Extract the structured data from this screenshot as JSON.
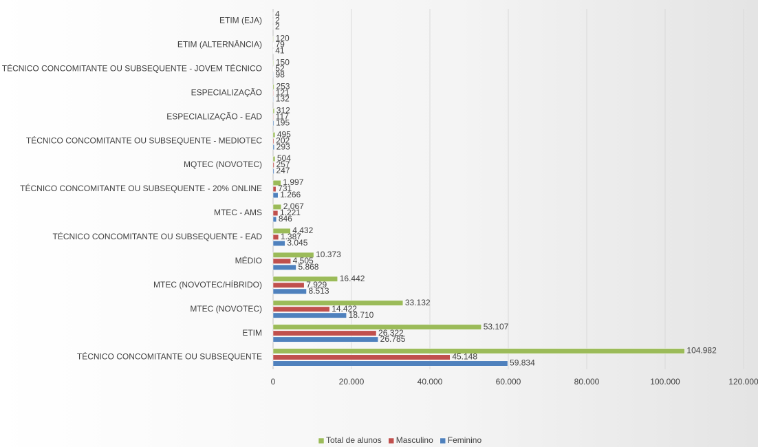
{
  "chart_data": {
    "type": "bar",
    "orientation": "horizontal",
    "categories": [
      "ETIM (EJA)",
      "ETIM (ALTERNÂNCIA)",
      "TÉCNICO CONCOMITANTE OU SUBSEQUENTE - JOVEM TÉCNICO",
      "ESPECIALIZAÇÃO",
      "ESPECIALIZAÇÃO - EAD",
      "TÉCNICO CONCOMITANTE OU SUBSEQUENTE - MEDIOTEC",
      "MQTEC (NOVOTEC)",
      "TÉCNICO CONCOMITANTE OU SUBSEQUENTE - 20% ONLINE",
      "MTEC - AMS",
      "TÉCNICO CONCOMITANTE OU SUBSEQUENTE - EAD",
      "MÉDIO",
      "MTEC (NOVOTEC/HÍBRIDO)",
      "MTEC (NOVOTEC)",
      "ETIM",
      "TÉCNICO CONCOMITANTE OU SUBSEQUENTE"
    ],
    "series": [
      {
        "name": "Total de alunos",
        "color": "#9bbb59",
        "values": [
          4,
          120,
          150,
          253,
          312,
          495,
          504,
          1997,
          2067,
          4432,
          10373,
          16442,
          33132,
          53107,
          104982
        ],
        "value_labels": [
          "4",
          "120",
          "150",
          "253",
          "312",
          "495",
          "504",
          "1.997",
          "2.067",
          "4.432",
          "10.373",
          "16.442",
          "33.132",
          "53.107",
          "104.982"
        ]
      },
      {
        "name": "Masculino",
        "color": "#c0504d",
        "values": [
          2,
          79,
          52,
          121,
          117,
          202,
          257,
          731,
          1221,
          1387,
          4505,
          7929,
          14422,
          26322,
          45148
        ],
        "value_labels": [
          "2",
          "79",
          "52",
          "121",
          "117",
          "202",
          "257",
          "731",
          "1.221",
          "1.387",
          "4.505",
          "7.929",
          "14.422",
          "26.322",
          "45.148"
        ]
      },
      {
        "name": "Feminino",
        "color": "#4f81bd",
        "values": [
          2,
          41,
          98,
          132,
          195,
          293,
          247,
          1266,
          846,
          3045,
          5868,
          8513,
          18710,
          26785,
          59834
        ],
        "value_labels": [
          "2",
          "41",
          "98",
          "132",
          "195",
          "293",
          "247",
          "1.266",
          "846",
          "3.045",
          "5.868",
          "8.513",
          "18.710",
          "26.785",
          "59.834"
        ]
      }
    ],
    "xlim": [
      0,
      120000
    ],
    "xticks": [
      0,
      {
        "value": 20000,
        "label": "20.000"
      },
      {
        "value": 40000,
        "label": "40.000"
      },
      {
        "value": 60000,
        "label": "60.000"
      },
      {
        "value": 80000,
        "label": "80.000"
      },
      {
        "value": 100000,
        "label": "100.000"
      },
      {
        "value": 120000,
        "label": "120.000"
      }
    ],
    "grid": true,
    "legend": "bottom"
  }
}
